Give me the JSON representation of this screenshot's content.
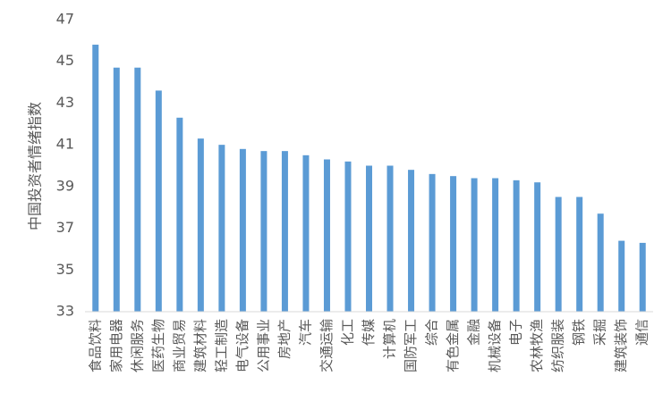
{
  "chart_data": {
    "type": "bar",
    "y_label": "中国投资者情绪指数",
    "categories": [
      "食品饮料",
      "家用电器",
      "休闲服务",
      "医药生物",
      "商业贸易",
      "建筑材料",
      "轻工制造",
      "电气设备",
      "公用事业",
      "房地产",
      "汽车",
      "交通运输",
      "化工",
      "传媒",
      "计算机",
      "国防军工",
      "综合",
      "有色金属",
      "金融",
      "机械设备",
      "电子",
      "农林牧渔",
      "纺织服装",
      "钢铁",
      "采掘",
      "建筑装饰",
      "通信"
    ],
    "values": [
      45.8,
      44.7,
      44.7,
      43.6,
      42.3,
      41.3,
      41.0,
      40.8,
      40.7,
      40.7,
      40.5,
      40.3,
      40.2,
      40.0,
      40.0,
      39.8,
      39.6,
      39.5,
      39.4,
      39.4,
      39.3,
      39.2,
      38.5,
      38.5,
      37.7,
      36.4,
      36.3
    ],
    "color": "#5b9bd5",
    "ylim": [
      33,
      47
    ],
    "yticks": [
      33,
      35,
      37,
      39,
      41,
      43,
      45,
      47
    ],
    "grid": false
  }
}
